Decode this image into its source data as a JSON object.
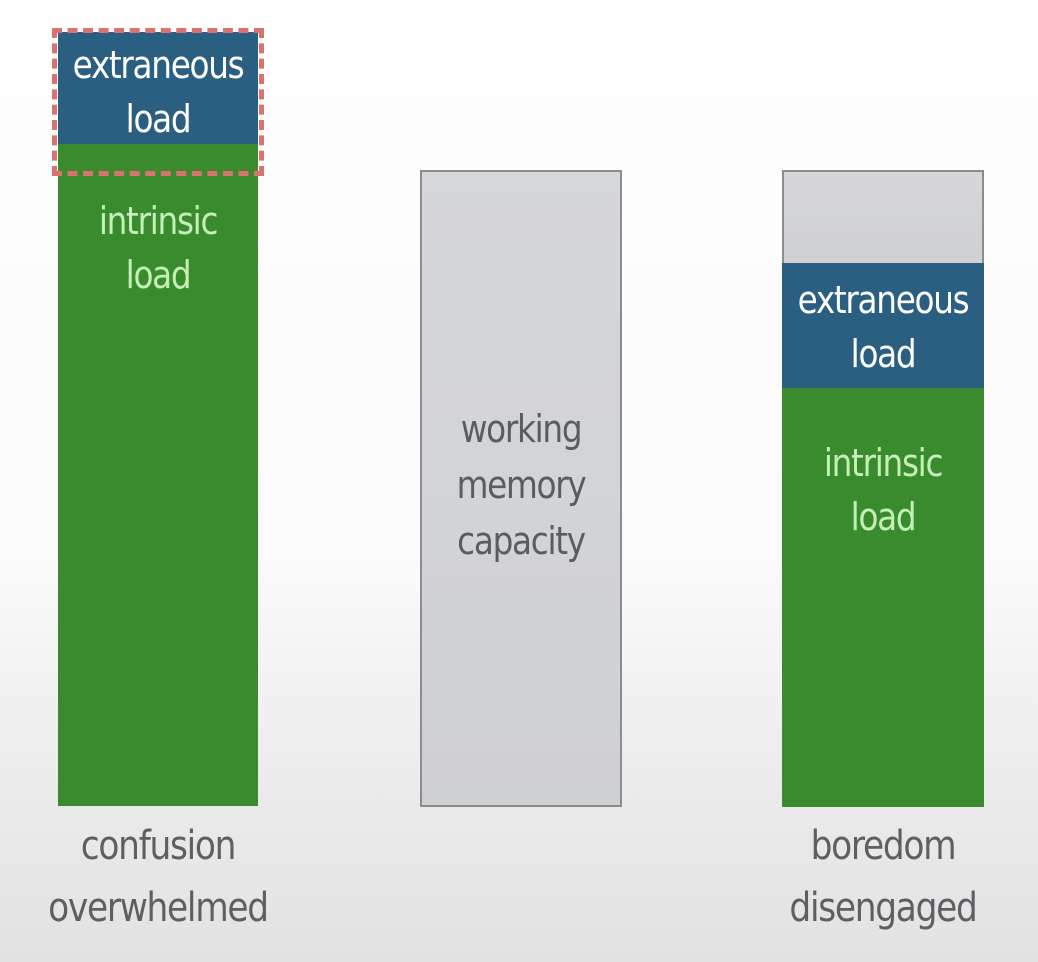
{
  "left_column": {
    "extraneous": [
      "extraneous",
      "load"
    ],
    "intrinsic": [
      "intrinsic",
      "load"
    ],
    "caption": [
      "confusion",
      "overwhelmed"
    ]
  },
  "middle_column": {
    "capacity": [
      "working",
      "memory",
      "capacity"
    ]
  },
  "right_column": {
    "extraneous": [
      "extraneous",
      "load"
    ],
    "intrinsic": [
      "intrinsic",
      "load"
    ],
    "caption": [
      "boredom",
      "disengaged"
    ]
  },
  "colors": {
    "intrinsic": "#3a8a2e",
    "extraneous": "#2b5f82",
    "capacity": "#d3d4d6",
    "highlight_dash": "#d9736f"
  }
}
